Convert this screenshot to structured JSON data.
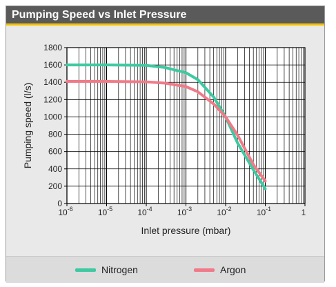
{
  "header": {
    "title": "Pumping Speed vs Inlet Pressure"
  },
  "colors": {
    "nitrogen": "#3ec9a0",
    "argon": "#f07a88",
    "header_bg": "#5a5a5a",
    "header_accent": "#f2c200"
  },
  "chart_data": {
    "type": "line",
    "title": "Pumping Speed vs Inlet Pressure",
    "xlabel": "Inlet pressure (mbar)",
    "ylabel": "Pumping speed (l/s)",
    "x_scale": "log",
    "xlim": [
      1e-06,
      1
    ],
    "ylim": [
      0,
      1800
    ],
    "grid": true,
    "legend_position": "bottom",
    "x_ticks": [
      {
        "value": 1e-06,
        "base": "10",
        "exp": "-6"
      },
      {
        "value": 1e-05,
        "base": "10",
        "exp": "-5"
      },
      {
        "value": 0.0001,
        "base": "10",
        "exp": "-4"
      },
      {
        "value": 0.001,
        "base": "10",
        "exp": "-3"
      },
      {
        "value": 0.01,
        "base": "10",
        "exp": "-2"
      },
      {
        "value": 0.1,
        "base": "10",
        "exp": "-1"
      },
      {
        "value": 1,
        "base": "1",
        "exp": ""
      }
    ],
    "y_ticks": [
      "0",
      "200",
      "400",
      "600",
      "800",
      "1000",
      "1200",
      "1400",
      "1600",
      "1800"
    ],
    "series": [
      {
        "name": "Nitrogen",
        "color": "#3ec9a0",
        "x": [
          1e-06,
          1e-05,
          0.0001,
          0.0003,
          0.001,
          0.002,
          0.005,
          0.01,
          0.02,
          0.05,
          0.1
        ],
        "y": [
          1600,
          1600,
          1595,
          1570,
          1510,
          1430,
          1230,
          1000,
          700,
          390,
          170
        ]
      },
      {
        "name": "Argon",
        "color": "#f07a88",
        "x": [
          1e-06,
          1e-05,
          0.0001,
          0.0003,
          0.001,
          0.002,
          0.005,
          0.01,
          0.02,
          0.05,
          0.1
        ],
        "y": [
          1410,
          1410,
          1405,
          1390,
          1350,
          1290,
          1150,
          1000,
          790,
          450,
          260
        ]
      }
    ]
  }
}
